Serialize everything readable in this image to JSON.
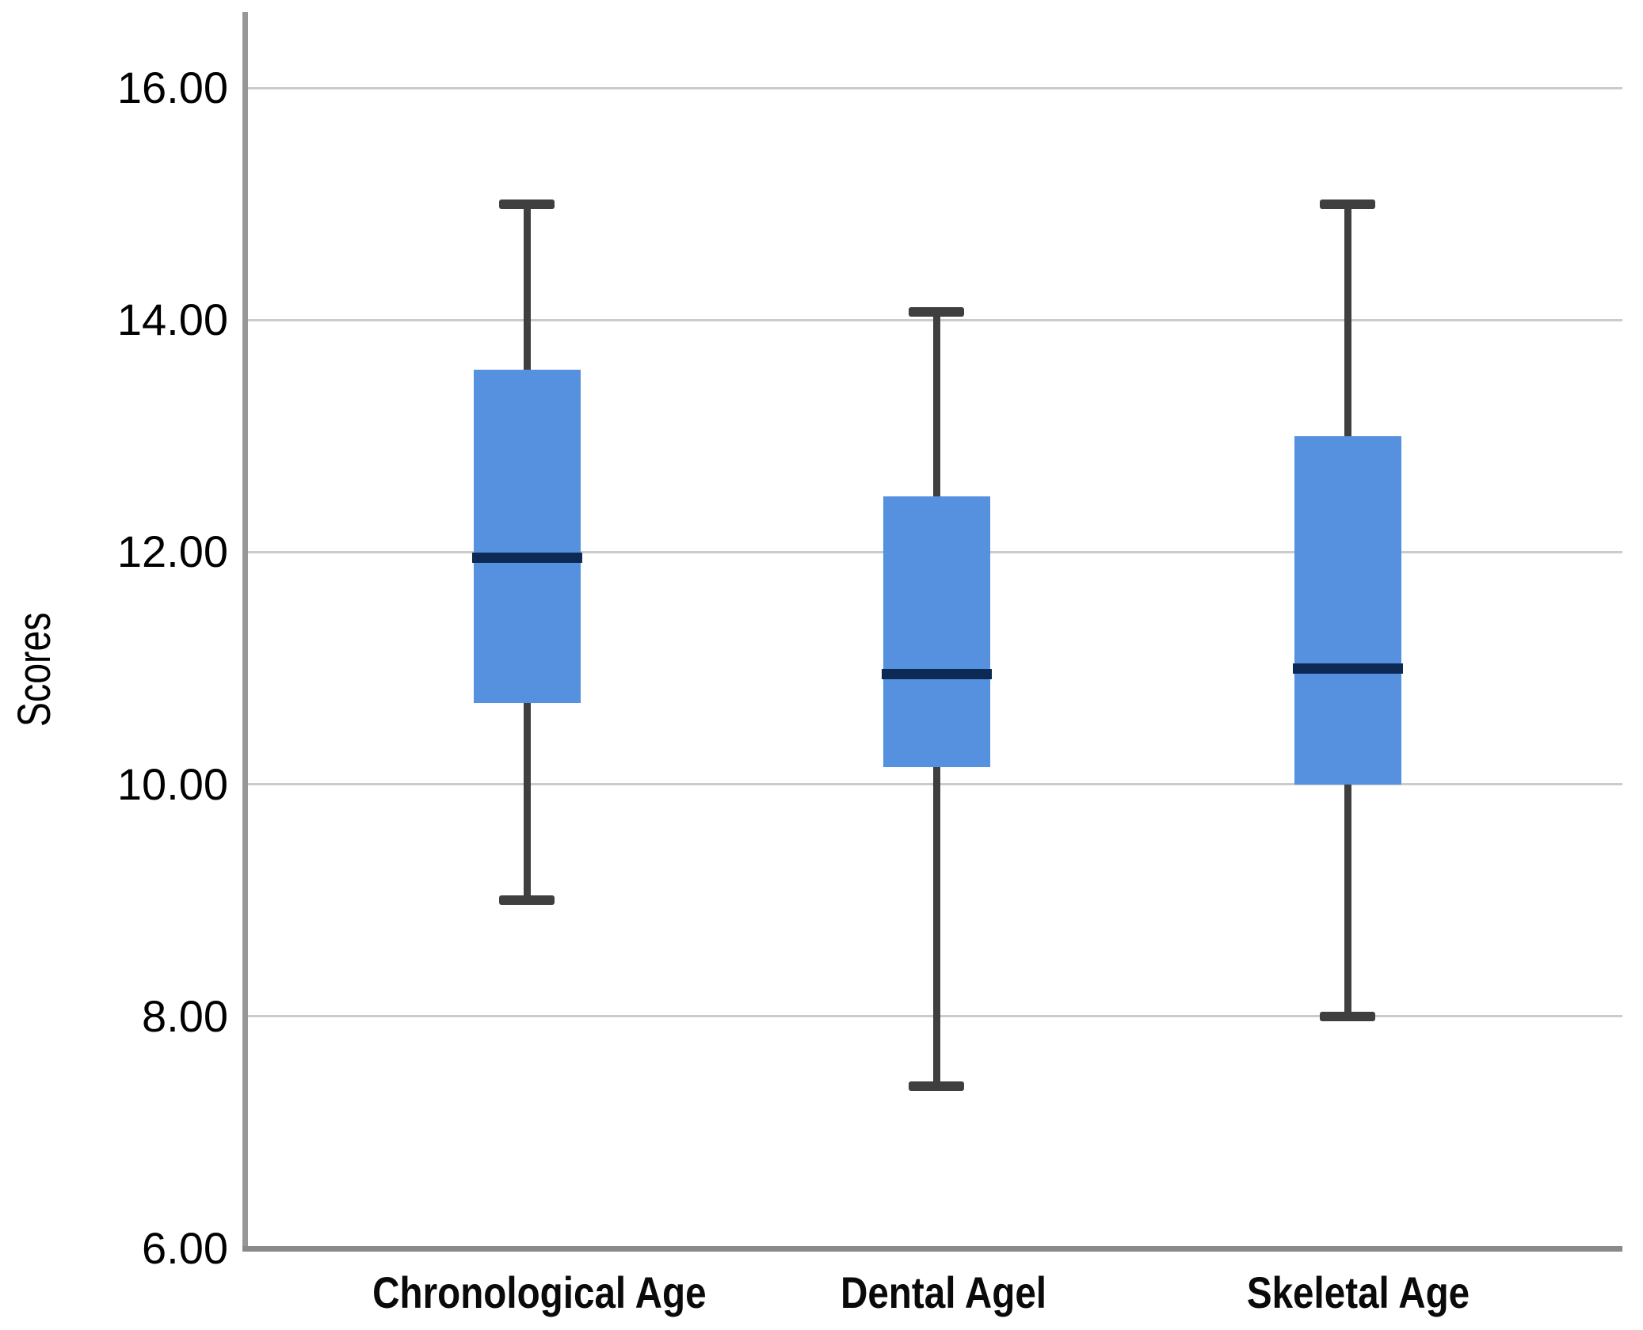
{
  "chart_data": {
    "type": "boxplot",
    "title": "",
    "xlabel": "",
    "ylabel": "Scores",
    "ylim": [
      6,
      16.7
    ],
    "grid": "horizontal",
    "legend": "none",
    "y_ticks": [
      {
        "value": 16,
        "label": "16.00"
      },
      {
        "value": 14,
        "label": "14.00"
      },
      {
        "value": 12,
        "label": "12.00"
      },
      {
        "value": 10,
        "label": "10.00"
      },
      {
        "value": 8,
        "label": "8.00"
      },
      {
        "value": 6,
        "label": "6.00"
      }
    ],
    "categories": [
      "Chronological Age",
      "Dental Agel",
      "Skeletal Age"
    ],
    "series": [
      {
        "category": "Chronological Age",
        "whisker_low": 9.0,
        "q1": 10.7,
        "median": 11.95,
        "q3": 13.57,
        "whisker_high": 15.0
      },
      {
        "category": "Dental Agel",
        "whisker_low": 7.4,
        "q1": 10.15,
        "median": 10.95,
        "q3": 12.48,
        "whisker_high": 14.07
      },
      {
        "category": "Skeletal Age",
        "whisker_low": 8.0,
        "q1": 10.0,
        "median": 11.0,
        "q3": 13.0,
        "whisker_high": 15.0
      }
    ],
    "colors": {
      "box_fill": "#5591DE",
      "median_line": "#0D2A55",
      "whisker": "#3f3f3f",
      "gridline": "#cbcbcb",
      "y_axis_line": "#979797",
      "x_axis_line": "#8a8a8a",
      "text": "#000000",
      "background": "#FFFFFF"
    }
  }
}
